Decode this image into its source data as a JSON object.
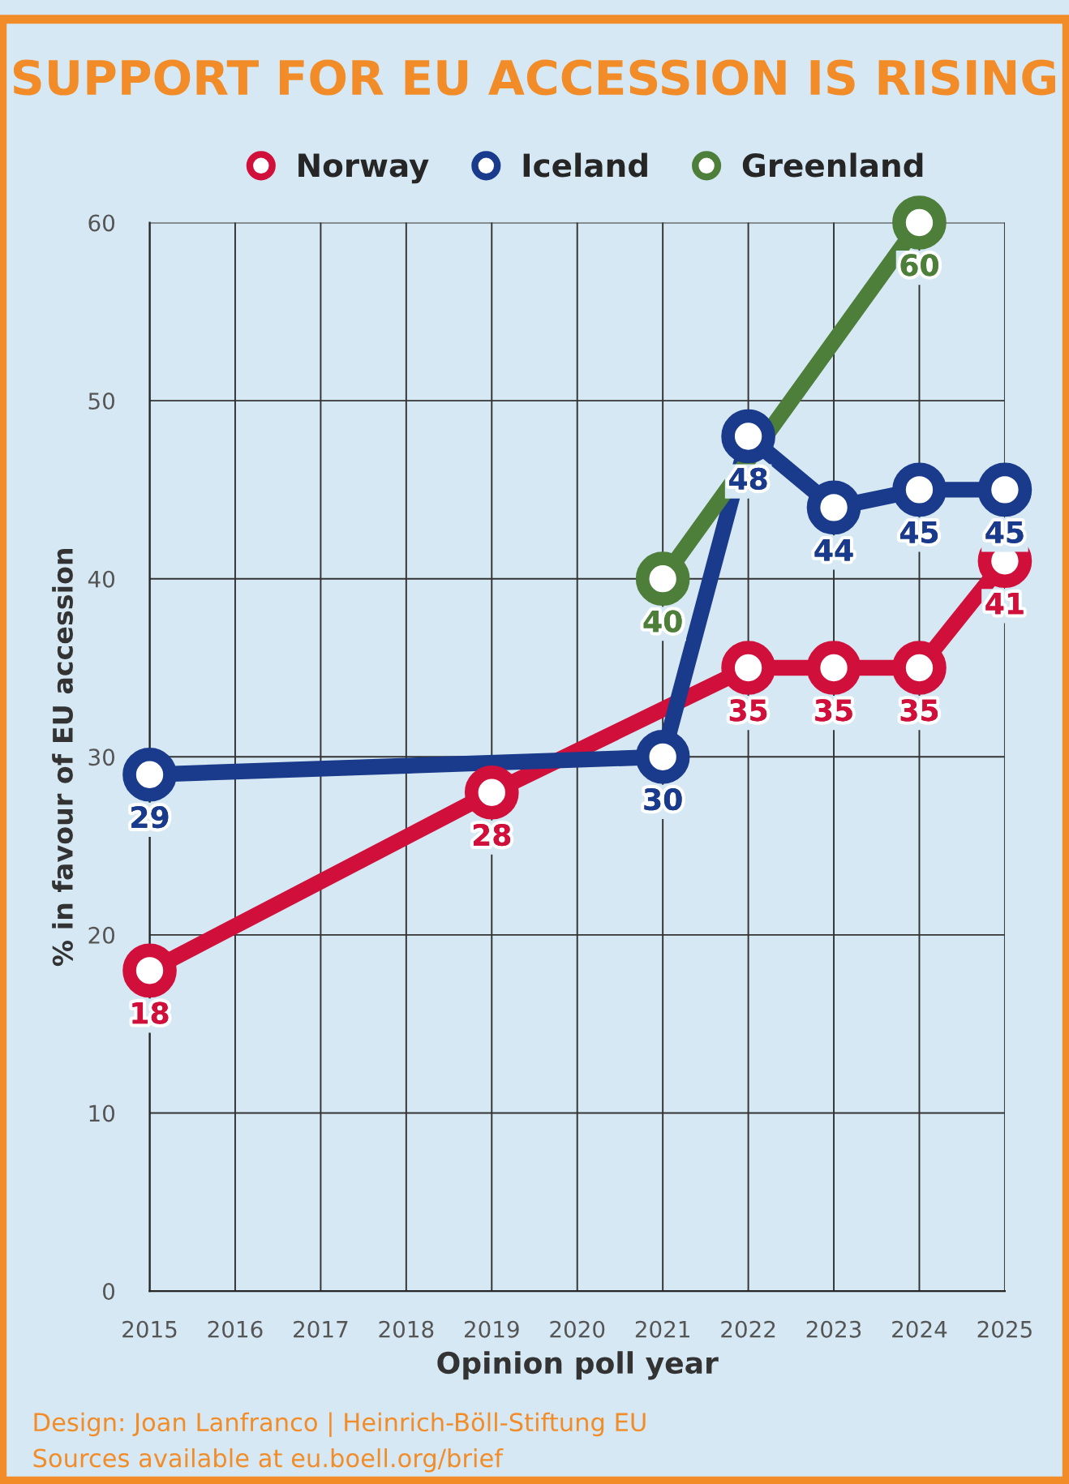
{
  "chart_data": {
    "type": "line",
    "title": "SUPPORT FOR EU ACCESSION IS RISING",
    "xlabel": "Opinion poll year",
    "ylabel": "% in favour of EU accession",
    "series": [
      {
        "name": "Norway",
        "color": "#d0103a",
        "x": [
          2015,
          2019,
          2022,
          2023,
          2024,
          2025
        ],
        "values": [
          18,
          28,
          35,
          35,
          35,
          41
        ]
      },
      {
        "name": "Iceland",
        "color": "#1a3a8c",
        "x": [
          2015,
          2021,
          2022,
          2023,
          2024,
          2025
        ],
        "values": [
          29,
          30,
          48,
          44,
          45,
          45
        ]
      },
      {
        "name": "Greenland",
        "color": "#4e7f3a",
        "x": [
          2021,
          2024
        ],
        "values": [
          40,
          60
        ]
      }
    ],
    "xlim": [
      2015,
      2025
    ],
    "xticks": [
      2015,
      2016,
      2017,
      2018,
      2019,
      2020,
      2021,
      2022,
      2023,
      2024,
      2025
    ],
    "ylim": [
      0,
      60
    ],
    "yticks": [
      0,
      10,
      20,
      30,
      40,
      50,
      60
    ],
    "grid": true,
    "legend": "top",
    "marker": "circle",
    "line_style": "solid",
    "data_labels": true,
    "annotations": [
      "Design: Joan Lanfranco | Heinrich-Böll-Stiftung EU",
      "Sources available at eu.boell.org/brief"
    ]
  }
}
